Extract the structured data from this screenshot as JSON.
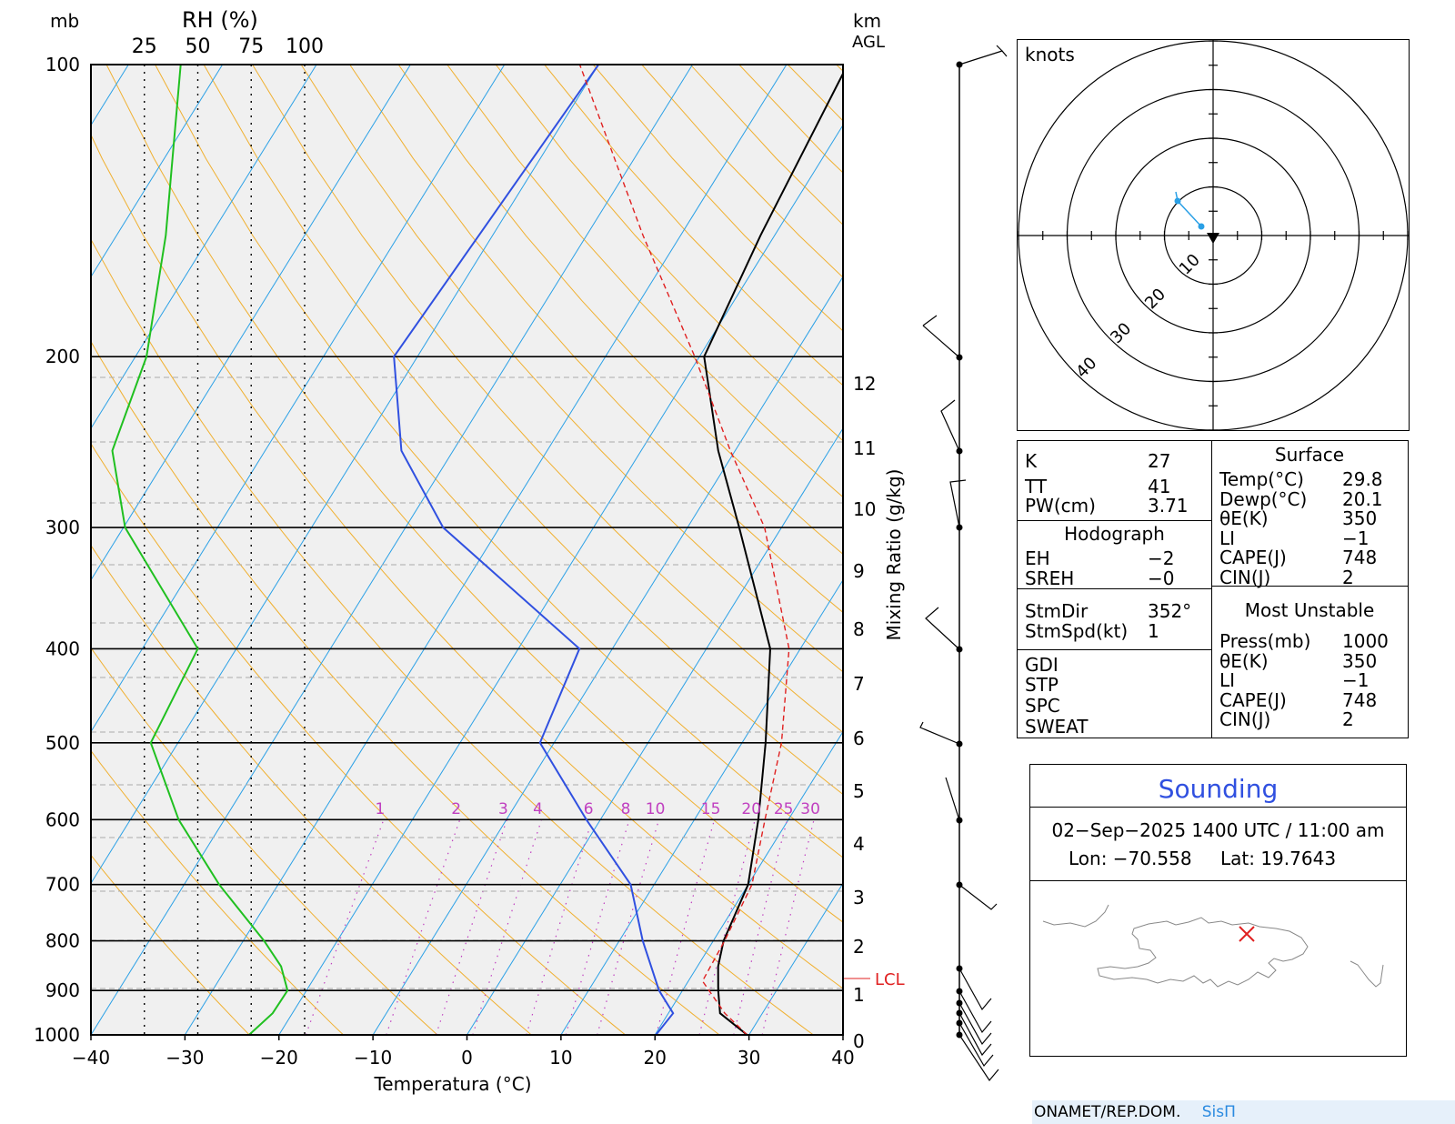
{
  "chart_data": {
    "type": "line",
    "title": "",
    "xlabel": "Temperatura (°C)",
    "ylabel": "",
    "xlim": [
      -40,
      40
    ],
    "pressure_levels": [
      100,
      200,
      300,
      400,
      500,
      600,
      700,
      800,
      900,
      1000
    ],
    "temperature_ticks": [
      "−40",
      "−30",
      "−20",
      "−10",
      "0",
      "10",
      "20",
      "30",
      "40"
    ],
    "rh_axis_label": "RH (%)",
    "rh_ticks": [
      "25",
      "50",
      "75",
      "100"
    ],
    "pressure_unit_label": "mb",
    "height_unit_label": "km",
    "height_unit_label2": "AGL",
    "height_ticks_km": [
      "0",
      "1",
      "2",
      "3",
      "4",
      "5",
      "6",
      "7",
      "8",
      "9",
      "10",
      "11",
      "12"
    ],
    "mixing_ratio_label": "Mixing Ratio (g/kg)",
    "mixing_ratio_ticks": [
      "1",
      "2",
      "3",
      "4",
      "6",
      "8",
      "10",
      "15",
      "20",
      "25",
      "30"
    ],
    "lcl_label": "LCL",
    "series": [
      {
        "name": "",
        "color": "#000000",
        "style": "solid",
        "points": [
          [
            1000,
            29.8
          ],
          [
            950,
            25.5
          ],
          [
            900,
            23.8
          ],
          [
            850,
            22.2
          ],
          [
            800,
            21.1
          ],
          [
            700,
            20.0
          ],
          [
            600,
            16.8
          ],
          [
            500,
            12.5
          ],
          [
            400,
            6.8
          ],
          [
            300,
            -4.5
          ],
          [
            250,
            -11.8
          ],
          [
            200,
            -19.5
          ],
          [
            150,
            -21.5
          ],
          [
            100,
            -23.5
          ]
        ]
      },
      {
        "name": "",
        "color": "#3050e0",
        "style": "solid",
        "points": [
          [
            1000,
            20.1
          ],
          [
            950,
            20.5
          ],
          [
            900,
            17.5
          ],
          [
            800,
            12.5
          ],
          [
            700,
            7.5
          ],
          [
            600,
            -1.5
          ],
          [
            500,
            -11.5
          ],
          [
            400,
            -13.5
          ],
          [
            300,
            -36.0
          ],
          [
            250,
            -45.5
          ],
          [
            200,
            -52.5
          ],
          [
            100,
            -50.0
          ]
        ]
      },
      {
        "name": "",
        "color": "#e02020",
        "style": "dashed",
        "points": [
          [
            1000,
            29.8
          ],
          [
            950,
            26.0
          ],
          [
            880,
            21.5
          ],
          [
            800,
            21.2
          ],
          [
            700,
            20.4
          ],
          [
            600,
            17.5
          ],
          [
            500,
            14.2
          ],
          [
            400,
            8.8
          ],
          [
            300,
            -1.8
          ],
          [
            250,
            -10.5
          ],
          [
            200,
            -20.5
          ],
          [
            150,
            -34.0
          ],
          [
            100,
            -52.0
          ]
        ]
      },
      {
        "name": "",
        "color": "#20c020",
        "style": "solid",
        "points": [
          [
            1000,
            74
          ],
          [
            950,
            85
          ],
          [
            900,
            92
          ],
          [
            850,
            89
          ],
          [
            800,
            81
          ],
          [
            700,
            60
          ],
          [
            600,
            41
          ],
          [
            500,
            28
          ],
          [
            400,
            50
          ],
          [
            300,
            16
          ],
          [
            250,
            10
          ],
          [
            200,
            26
          ],
          [
            150,
            35
          ],
          [
            100,
            42
          ]
        ]
      }
    ]
  },
  "hodograph": {
    "unit_label": "knots",
    "ring_labels": [
      "10",
      "20",
      "30",
      "40"
    ]
  },
  "stats": {
    "k_label": "K",
    "k_value": "27",
    "tt_label": "TT",
    "tt_value": "41",
    "pw_label": "PW(cm)",
    "pw_value": "3.71",
    "hodograph_header": "Hodograph",
    "eh_label": "EH",
    "eh_value": "−2",
    "sreh_label": "SREH",
    "sreh_value": "−0",
    "stmdir_label": "StmDir",
    "stmdir_value": "352°",
    "stmspd_label": "StmSpd(kt)",
    "stmspd_value": "1",
    "gdi_label": "GDI",
    "stp_label": "STP",
    "spc_label": "SPC",
    "sweat_label": "SWEAT",
    "surface_header": "Surface",
    "surface": [
      {
        "label": "Temp(°C)",
        "value": "29.8"
      },
      {
        "label": "Dewp(°C)",
        "value": "20.1"
      },
      {
        "label": "θE(K)",
        "value": "350"
      },
      {
        "label": "LI",
        "value": "−1"
      },
      {
        "label": "CAPE(J)",
        "value": "748"
      },
      {
        "label": "CIN(J)",
        "value": "2"
      }
    ],
    "mu_header": "Most Unstable",
    "most_unstable": [
      {
        "label": "Press(mb)",
        "value": "1000"
      },
      {
        "label": "θE(K)",
        "value": "350"
      },
      {
        "label": "LI",
        "value": "−1"
      },
      {
        "label": "CAPE(J)",
        "value": "748"
      },
      {
        "label": "CIN(J)",
        "value": "2"
      }
    ]
  },
  "sounding": {
    "title": "Sounding",
    "datetime": "02−Sep−2025 1400 UTC / 11:00 am",
    "lon_label": "Lon: −70.558",
    "lat_label": "Lat: 19.7643"
  },
  "footer": {
    "org": "ONAMET/REP.DOM.",
    "brand": "SisΠ"
  },
  "colors": {
    "temperature": "#000000",
    "dewpoint": "#3050e0",
    "parcel": "#e02020",
    "rh": "#20c020",
    "isotherm": "#2aa0e6",
    "dry_adiabat": "#f0b030",
    "mixing_ratio": "#c040c0",
    "plot_bg": "#f0f0f0"
  }
}
